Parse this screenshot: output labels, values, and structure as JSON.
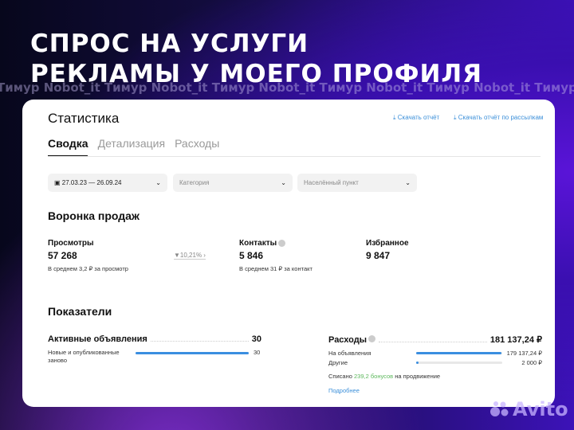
{
  "headline": {
    "line1": "СПРОС НА УСЛУГИ",
    "line2": "РЕКЛАМЫ У МОЕГО ПРОФИЛЯ"
  },
  "watermark": "Тимур Nobot_it Тимур Nobot_it Тимур Nobot_it Тимур Nobot_it Тимур Nobot_it Тимур Nobot_it",
  "page": {
    "title": "Статистика",
    "download_report": "Скачать отчёт",
    "download_mailing": "Скачать отчёт по рассылкам"
  },
  "tabs": [
    {
      "label": "Сводка",
      "active": true
    },
    {
      "label": "Детализация"
    },
    {
      "label": "Расходы"
    }
  ],
  "filters": {
    "date": "27.03.23 — 26.09.24",
    "category": "Категория",
    "city": "Населённый пункт"
  },
  "funnel": {
    "title": "Воронка продаж",
    "views": {
      "label": "Просмотры",
      "value": "57 268",
      "avg": "В среднем 3,2 ₽ за просмотр"
    },
    "conversion": "10,21%",
    "contacts": {
      "label": "Контакты",
      "value": "5 846",
      "avg": "В среднем 31 ₽ за контакт"
    },
    "favorites": {
      "label": "Избранное",
      "value": "9 847"
    }
  },
  "indicators": {
    "title": "Показатели",
    "active": {
      "label": "Активные объявления",
      "value": "30",
      "row_label": "Новые и опубликованные заново",
      "row_value": "30",
      "fill": 1.0
    },
    "expenses": {
      "label": "Расходы",
      "value": "181 137,24 ₽",
      "rows": [
        {
          "label": "На объявления",
          "value": "179 137,24 ₽",
          "fill": 0.99
        },
        {
          "label": "Другие",
          "value": "2 000 ₽",
          "fill": 0.02
        }
      ],
      "bonus_prefix": "Списано",
      "bonus_amount": "239,2 бонусов",
      "bonus_suffix": "на продвижение",
      "more": "Подробнее"
    }
  },
  "brand": "Avito",
  "colors": {
    "accent": "#3a8ee0",
    "bonus": "#5cb85c"
  }
}
